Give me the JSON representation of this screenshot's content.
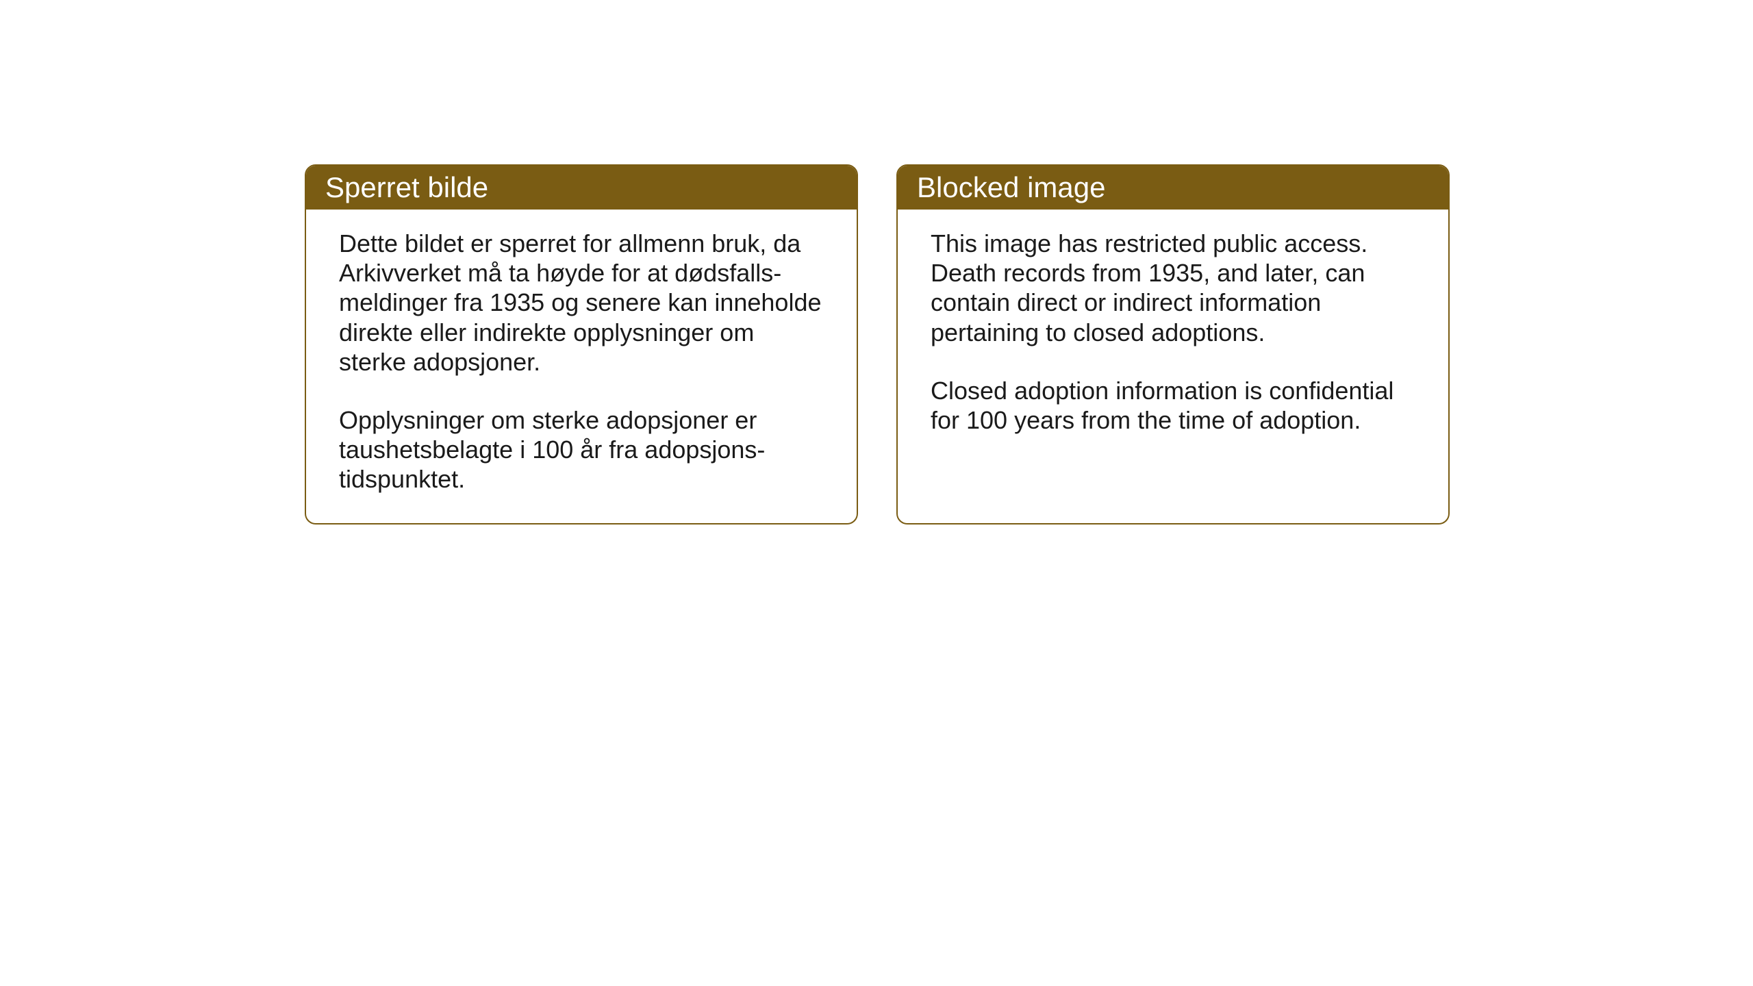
{
  "layout": {
    "background_color": "#ffffff",
    "card_border_color": "#7a5c13",
    "card_header_bg_color": "#7a5c13",
    "card_header_text_color": "#ffffff",
    "card_body_text_color": "#1a1a1a",
    "card_border_radius": 16,
    "card_border_width": 2,
    "header_font_size": 42,
    "body_font_size": 36
  },
  "cards": {
    "norwegian": {
      "title": "Sperret bilde",
      "paragraph1": "Dette bildet er sperret for allmenn bruk, da Arkivverket må ta høyde for at dødsfalls-meldinger fra 1935 og senere kan inneholde direkte eller indirekte opplysninger om sterke adopsjoner.",
      "paragraph2": "Opplysninger om sterke adopsjoner er taushetsbelagte i 100 år fra adopsjons-tidspunktet."
    },
    "english": {
      "title": "Blocked image",
      "paragraph1": "This image has restricted public access. Death records from 1935, and later, can contain direct or indirect information pertaining to closed adoptions.",
      "paragraph2": "Closed adoption information is confidential for 100 years from the time of adoption."
    }
  }
}
